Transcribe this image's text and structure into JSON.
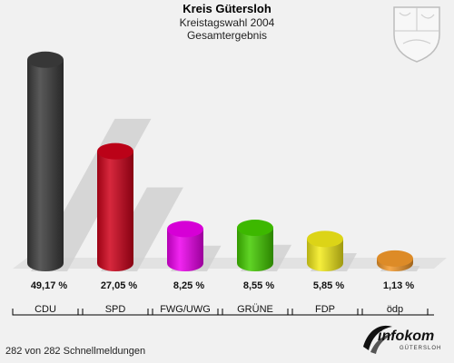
{
  "header": {
    "title": "Kreis Gütersloh",
    "subtitle": "Kreistagswahl 2004",
    "subtitle2": "Gesamtergebnis"
  },
  "footer": {
    "status": "282 von 282 Schnellmeldungen"
  },
  "logo": {
    "main": "infokom",
    "sub": "GÜTERSLOH"
  },
  "colors": {
    "background": "#f1f1f1",
    "floor": "#e2e2e2"
  },
  "chart_data": {
    "type": "bar",
    "categories": [
      "CDU",
      "SPD",
      "FWG/UWG",
      "GRÜNE",
      "FDP",
      "ödp"
    ],
    "values": [
      49.17,
      27.05,
      8.25,
      8.55,
      5.85,
      1.13
    ],
    "value_labels": [
      "49,17 %",
      "27,05 %",
      "8,25 %",
      "8,55 %",
      "5,85 %",
      "1,13 %"
    ],
    "colors": [
      "#3d3d3d",
      "#d0021b",
      "#ee00ee",
      "#44cc00",
      "#f4ec1a",
      "#f59a2b"
    ],
    "title": "Kreis Gütersloh",
    "ylim": [
      0,
      50
    ],
    "grid": false,
    "legend": "none"
  }
}
